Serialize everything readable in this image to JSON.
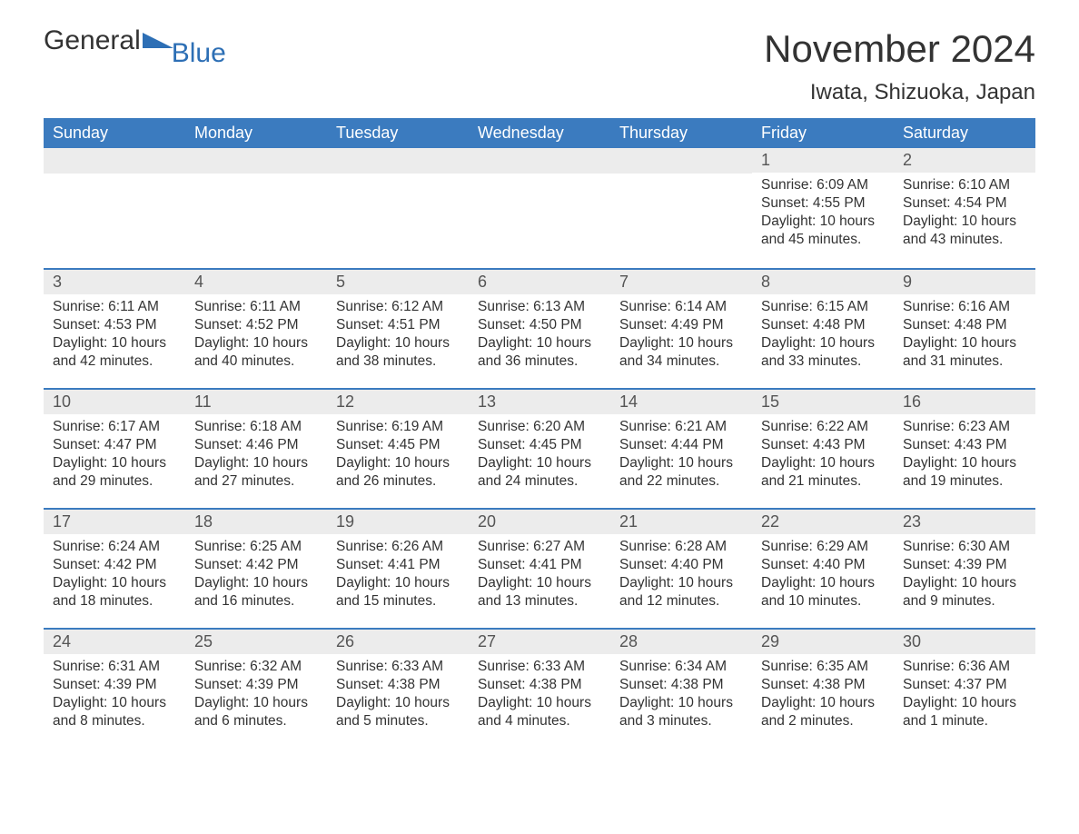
{
  "logo": {
    "word1": "General",
    "word2": "Blue",
    "accent_color": "#2d6fb5"
  },
  "title": "November 2024",
  "location": "Iwata, Shizuoka, Japan",
  "colors": {
    "header_bg": "#3b7bbf",
    "header_text": "#ffffff",
    "daybar_bg": "#ececec",
    "border": "#3b7bbf",
    "body_text": "#333333",
    "page_bg": "#ffffff"
  },
  "typography": {
    "title_fontsize": 42,
    "location_fontsize": 24,
    "header_fontsize": 18,
    "daynum_fontsize": 18,
    "cell_fontsize": 15.5
  },
  "layout": {
    "columns": 7,
    "rows": 5,
    "leading_blanks": 5
  },
  "day_headers": [
    "Sunday",
    "Monday",
    "Tuesday",
    "Wednesday",
    "Thursday",
    "Friday",
    "Saturday"
  ],
  "days": [
    {
      "n": 1,
      "sunrise": "6:09 AM",
      "sunset": "4:55 PM",
      "daylight": "10 hours and 45 minutes."
    },
    {
      "n": 2,
      "sunrise": "6:10 AM",
      "sunset": "4:54 PM",
      "daylight": "10 hours and 43 minutes."
    },
    {
      "n": 3,
      "sunrise": "6:11 AM",
      "sunset": "4:53 PM",
      "daylight": "10 hours and 42 minutes."
    },
    {
      "n": 4,
      "sunrise": "6:11 AM",
      "sunset": "4:52 PM",
      "daylight": "10 hours and 40 minutes."
    },
    {
      "n": 5,
      "sunrise": "6:12 AM",
      "sunset": "4:51 PM",
      "daylight": "10 hours and 38 minutes."
    },
    {
      "n": 6,
      "sunrise": "6:13 AM",
      "sunset": "4:50 PM",
      "daylight": "10 hours and 36 minutes."
    },
    {
      "n": 7,
      "sunrise": "6:14 AM",
      "sunset": "4:49 PM",
      "daylight": "10 hours and 34 minutes."
    },
    {
      "n": 8,
      "sunrise": "6:15 AM",
      "sunset": "4:48 PM",
      "daylight": "10 hours and 33 minutes."
    },
    {
      "n": 9,
      "sunrise": "6:16 AM",
      "sunset": "4:48 PM",
      "daylight": "10 hours and 31 minutes."
    },
    {
      "n": 10,
      "sunrise": "6:17 AM",
      "sunset": "4:47 PM",
      "daylight": "10 hours and 29 minutes."
    },
    {
      "n": 11,
      "sunrise": "6:18 AM",
      "sunset": "4:46 PM",
      "daylight": "10 hours and 27 minutes."
    },
    {
      "n": 12,
      "sunrise": "6:19 AM",
      "sunset": "4:45 PM",
      "daylight": "10 hours and 26 minutes."
    },
    {
      "n": 13,
      "sunrise": "6:20 AM",
      "sunset": "4:45 PM",
      "daylight": "10 hours and 24 minutes."
    },
    {
      "n": 14,
      "sunrise": "6:21 AM",
      "sunset": "4:44 PM",
      "daylight": "10 hours and 22 minutes."
    },
    {
      "n": 15,
      "sunrise": "6:22 AM",
      "sunset": "4:43 PM",
      "daylight": "10 hours and 21 minutes."
    },
    {
      "n": 16,
      "sunrise": "6:23 AM",
      "sunset": "4:43 PM",
      "daylight": "10 hours and 19 minutes."
    },
    {
      "n": 17,
      "sunrise": "6:24 AM",
      "sunset": "4:42 PM",
      "daylight": "10 hours and 18 minutes."
    },
    {
      "n": 18,
      "sunrise": "6:25 AM",
      "sunset": "4:42 PM",
      "daylight": "10 hours and 16 minutes."
    },
    {
      "n": 19,
      "sunrise": "6:26 AM",
      "sunset": "4:41 PM",
      "daylight": "10 hours and 15 minutes."
    },
    {
      "n": 20,
      "sunrise": "6:27 AM",
      "sunset": "4:41 PM",
      "daylight": "10 hours and 13 minutes."
    },
    {
      "n": 21,
      "sunrise": "6:28 AM",
      "sunset": "4:40 PM",
      "daylight": "10 hours and 12 minutes."
    },
    {
      "n": 22,
      "sunrise": "6:29 AM",
      "sunset": "4:40 PM",
      "daylight": "10 hours and 10 minutes."
    },
    {
      "n": 23,
      "sunrise": "6:30 AM",
      "sunset": "4:39 PM",
      "daylight": "10 hours and 9 minutes."
    },
    {
      "n": 24,
      "sunrise": "6:31 AM",
      "sunset": "4:39 PM",
      "daylight": "10 hours and 8 minutes."
    },
    {
      "n": 25,
      "sunrise": "6:32 AM",
      "sunset": "4:39 PM",
      "daylight": "10 hours and 6 minutes."
    },
    {
      "n": 26,
      "sunrise": "6:33 AM",
      "sunset": "4:38 PM",
      "daylight": "10 hours and 5 minutes."
    },
    {
      "n": 27,
      "sunrise": "6:33 AM",
      "sunset": "4:38 PM",
      "daylight": "10 hours and 4 minutes."
    },
    {
      "n": 28,
      "sunrise": "6:34 AM",
      "sunset": "4:38 PM",
      "daylight": "10 hours and 3 minutes."
    },
    {
      "n": 29,
      "sunrise": "6:35 AM",
      "sunset": "4:38 PM",
      "daylight": "10 hours and 2 minutes."
    },
    {
      "n": 30,
      "sunrise": "6:36 AM",
      "sunset": "4:37 PM",
      "daylight": "10 hours and 1 minute."
    }
  ],
  "labels": {
    "sunrise": "Sunrise: ",
    "sunset": "Sunset: ",
    "daylight": "Daylight: "
  }
}
